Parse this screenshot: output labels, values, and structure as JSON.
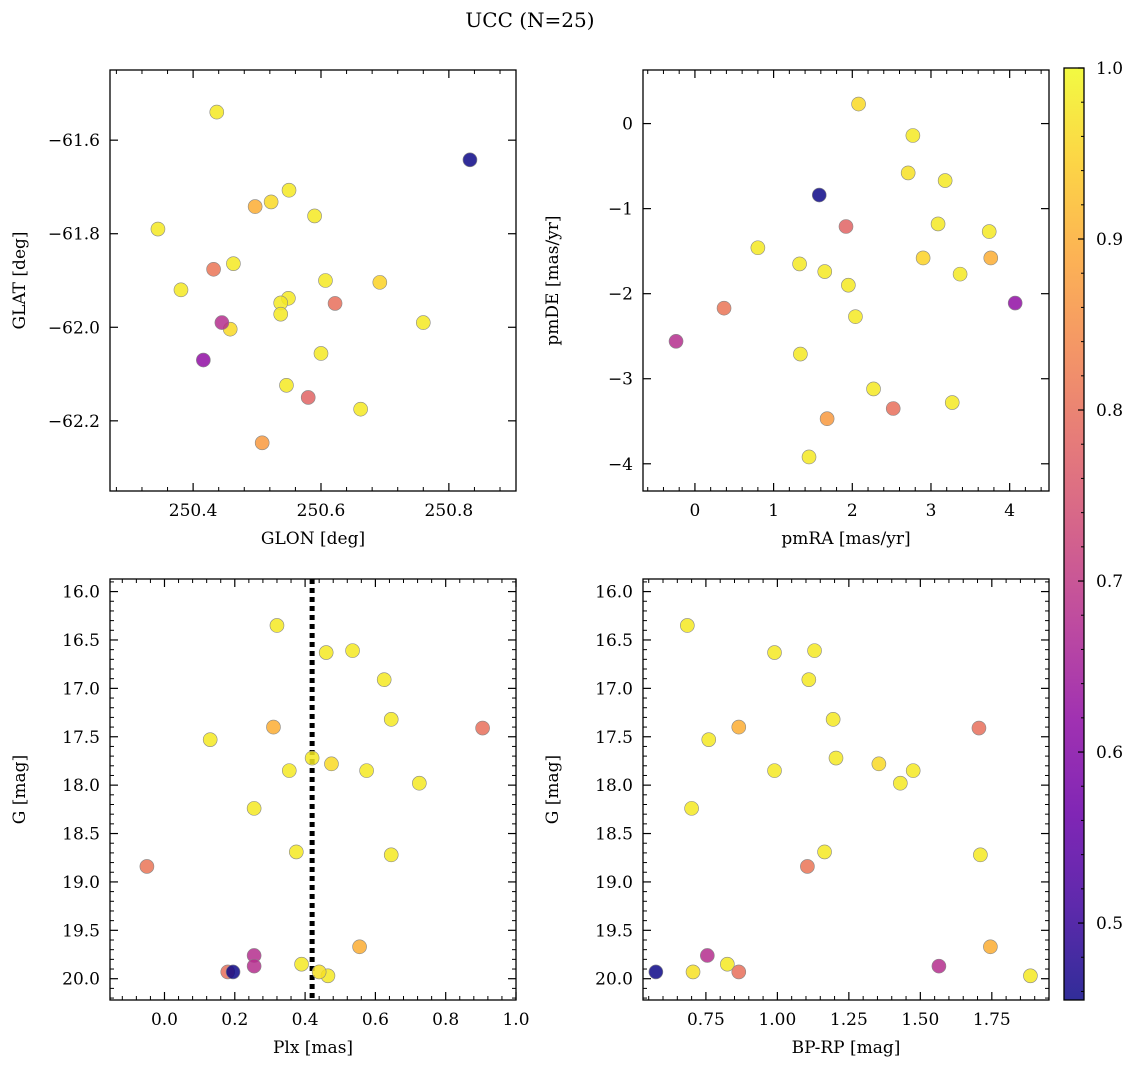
{
  "title": "UCC (N=25)",
  "colorbar": {
    "range": [
      0.455,
      1.0
    ],
    "ticks": [
      0.5,
      0.6,
      0.7,
      0.8,
      0.9,
      1.0
    ],
    "tick_labels": [
      "0.5",
      "0.6",
      "0.7",
      "0.8",
      "0.9",
      "1.0"
    ],
    "colormap": "plasma"
  },
  "chart_data": [
    {
      "type": "scatter",
      "xlabel": "GLON [deg]",
      "ylabel": "GLAT [deg]",
      "xlim": [
        250.27,
        250.905
      ],
      "ylim": [
        -62.35,
        -61.45
      ],
      "x_ticks": [
        250.4,
        250.6,
        250.8
      ],
      "x_tick_labels": [
        "250.4",
        "250.6",
        "250.8"
      ],
      "y_ticks": [
        -61.6,
        -61.8,
        -62.0,
        -62.2
      ],
      "y_tick_labels": [
        "−61.6",
        "−61.8",
        "−62.0",
        "−62.2"
      ],
      "points": [
        {
          "x": 250.437,
          "y": -61.54,
          "c": 0.98
        },
        {
          "x": 250.833,
          "y": -61.642,
          "c": 0.455
        },
        {
          "x": 250.55,
          "y": -61.707,
          "c": 0.98
        },
        {
          "x": 250.522,
          "y": -61.732,
          "c": 0.96
        },
        {
          "x": 250.497,
          "y": -61.742,
          "c": 0.9
        },
        {
          "x": 250.59,
          "y": -61.762,
          "c": 0.98
        },
        {
          "x": 250.345,
          "y": -61.79,
          "c": 0.98
        },
        {
          "x": 250.463,
          "y": -61.864,
          "c": 0.98
        },
        {
          "x": 250.432,
          "y": -61.876,
          "c": 0.81
        },
        {
          "x": 250.607,
          "y": -61.9,
          "c": 0.98
        },
        {
          "x": 250.692,
          "y": -61.904,
          "c": 0.95
        },
        {
          "x": 250.381,
          "y": -61.92,
          "c": 0.98
        },
        {
          "x": 250.549,
          "y": -61.938,
          "c": 0.98
        },
        {
          "x": 250.537,
          "y": -61.948,
          "c": 0.98
        },
        {
          "x": 250.622,
          "y": -61.949,
          "c": 0.8
        },
        {
          "x": 250.537,
          "y": -61.972,
          "c": 0.98
        },
        {
          "x": 250.76,
          "y": -61.99,
          "c": 0.98
        },
        {
          "x": 250.445,
          "y": -61.99,
          "c": 0.68
        },
        {
          "x": 250.458,
          "y": -62.004,
          "c": 0.96
        },
        {
          "x": 250.6,
          "y": -62.056,
          "c": 0.98
        },
        {
          "x": 250.416,
          "y": -62.07,
          "c": 0.62
        },
        {
          "x": 250.546,
          "y": -62.124,
          "c": 0.98
        },
        {
          "x": 250.58,
          "y": -62.15,
          "c": 0.78
        },
        {
          "x": 250.662,
          "y": -62.175,
          "c": 0.98
        },
        {
          "x": 250.508,
          "y": -62.247,
          "c": 0.87
        }
      ]
    },
    {
      "type": "scatter",
      "xlabel": "pmRA [mas/yr]",
      "ylabel": "pmDE [mas/yr]",
      "xlim": [
        -0.66,
        4.5
      ],
      "ylim": [
        -4.32,
        0.63
      ],
      "x_ticks": [
        0,
        1,
        2,
        3,
        4
      ],
      "x_tick_labels": [
        "0",
        "1",
        "2",
        "3",
        "4"
      ],
      "y_ticks": [
        0,
        -1,
        -2,
        -3,
        -4
      ],
      "y_tick_labels": [
        "0",
        "−1",
        "−2",
        "−3",
        "−4"
      ],
      "points": [
        {
          "x": 2.08,
          "y": 0.23,
          "c": 0.96
        },
        {
          "x": 2.77,
          "y": -0.14,
          "c": 0.98
        },
        {
          "x": 2.71,
          "y": -0.58,
          "c": 0.97
        },
        {
          "x": 3.18,
          "y": -0.67,
          "c": 0.98
        },
        {
          "x": 1.58,
          "y": -0.84,
          "c": 0.455
        },
        {
          "x": 3.09,
          "y": -1.18,
          "c": 0.98
        },
        {
          "x": 1.92,
          "y": -1.21,
          "c": 0.78
        },
        {
          "x": 3.74,
          "y": -1.27,
          "c": 0.98
        },
        {
          "x": 0.8,
          "y": -1.46,
          "c": 0.98
        },
        {
          "x": 2.9,
          "y": -1.58,
          "c": 0.95
        },
        {
          "x": 3.76,
          "y": -1.58,
          "c": 0.9
        },
        {
          "x": 1.33,
          "y": -1.65,
          "c": 0.98
        },
        {
          "x": 1.65,
          "y": -1.74,
          "c": 0.98
        },
        {
          "x": 3.37,
          "y": -1.77,
          "c": 0.98
        },
        {
          "x": 1.95,
          "y": -1.9,
          "c": 0.98
        },
        {
          "x": 4.07,
          "y": -2.11,
          "c": 0.62
        },
        {
          "x": 0.37,
          "y": -2.17,
          "c": 0.81
        },
        {
          "x": 2.04,
          "y": -2.27,
          "c": 0.98
        },
        {
          "x": -0.24,
          "y": -2.56,
          "c": 0.68
        },
        {
          "x": 1.34,
          "y": -2.71,
          "c": 0.98
        },
        {
          "x": 2.27,
          "y": -3.12,
          "c": 0.98
        },
        {
          "x": 3.27,
          "y": -3.28,
          "c": 0.98
        },
        {
          "x": 2.52,
          "y": -3.35,
          "c": 0.8
        },
        {
          "x": 1.68,
          "y": -3.47,
          "c": 0.87
        },
        {
          "x": 1.45,
          "y": -3.92,
          "c": 0.98
        }
      ]
    },
    {
      "type": "scatter",
      "xlabel": "Plx [mas]",
      "ylabel": "G [mag]",
      "xlim": [
        -0.155,
        1.0
      ],
      "ylim": [
        20.22,
        15.87
      ],
      "vline": 0.42,
      "x_ticks": [
        0.0,
        0.2,
        0.4,
        0.6,
        0.8,
        1.0
      ],
      "x_tick_labels": [
        "0.0",
        "0.2",
        "0.4",
        "0.6",
        "0.8",
        "1.0"
      ],
      "y_ticks": [
        16.0,
        16.5,
        17.0,
        17.5,
        18.0,
        18.5,
        19.0,
        19.5,
        20.0
      ],
      "y_tick_labels": [
        "16.0",
        "16.5",
        "17.0",
        "17.5",
        "18.0",
        "18.5",
        "19.0",
        "19.5",
        "20.0"
      ],
      "points": [
        {
          "x": 0.32,
          "y": 16.35,
          "c": 0.98
        },
        {
          "x": 0.535,
          "y": 16.61,
          "c": 0.98
        },
        {
          "x": 0.46,
          "y": 16.63,
          "c": 0.98
        },
        {
          "x": 0.625,
          "y": 16.91,
          "c": 0.98
        },
        {
          "x": 0.645,
          "y": 17.32,
          "c": 0.98
        },
        {
          "x": 0.31,
          "y": 17.4,
          "c": 0.9
        },
        {
          "x": 0.905,
          "y": 17.41,
          "c": 0.8
        },
        {
          "x": 0.13,
          "y": 17.53,
          "c": 0.98
        },
        {
          "x": 0.42,
          "y": 17.72,
          "c": 0.98
        },
        {
          "x": 0.475,
          "y": 17.78,
          "c": 0.96
        },
        {
          "x": 0.355,
          "y": 17.85,
          "c": 0.98
        },
        {
          "x": 0.575,
          "y": 17.85,
          "c": 0.98
        },
        {
          "x": 0.725,
          "y": 17.98,
          "c": 0.98
        },
        {
          "x": 0.255,
          "y": 18.24,
          "c": 0.98
        },
        {
          "x": 0.375,
          "y": 18.69,
          "c": 0.98
        },
        {
          "x": 0.645,
          "y": 18.72,
          "c": 0.98
        },
        {
          "x": -0.05,
          "y": 18.84,
          "c": 0.81
        },
        {
          "x": 0.555,
          "y": 19.67,
          "c": 0.9
        },
        {
          "x": 0.255,
          "y": 19.76,
          "c": 0.68
        },
        {
          "x": 0.39,
          "y": 19.85,
          "c": 0.98
        },
        {
          "x": 0.255,
          "y": 19.87,
          "c": 0.68
        },
        {
          "x": 0.44,
          "y": 19.93,
          "c": 0.97
        },
        {
          "x": 0.195,
          "y": 19.93,
          "c": 0.455
        },
        {
          "x": 0.18,
          "y": 19.93,
          "c": 0.8
        },
        {
          "x": 0.465,
          "y": 19.97,
          "c": 0.98
        }
      ]
    },
    {
      "type": "scatter",
      "xlabel": "BP-RP [mag]",
      "ylabel": "G [mag]",
      "xlim": [
        0.53,
        1.95
      ],
      "ylim": [
        20.22,
        15.87
      ],
      "x_ticks": [
        0.75,
        1.0,
        1.25,
        1.5,
        1.75
      ],
      "x_tick_labels": [
        "0.75",
        "1.00",
        "1.25",
        "1.50",
        "1.75"
      ],
      "y_ticks": [
        16.0,
        16.5,
        17.0,
        17.5,
        18.0,
        18.5,
        19.0,
        19.5,
        20.0
      ],
      "y_tick_labels": [
        "16.0",
        "16.5",
        "17.0",
        "17.5",
        "18.0",
        "18.5",
        "19.0",
        "19.5",
        "20.0"
      ],
      "points": [
        {
          "x": 0.685,
          "y": 16.35,
          "c": 0.98
        },
        {
          "x": 1.13,
          "y": 16.61,
          "c": 0.98
        },
        {
          "x": 0.99,
          "y": 16.63,
          "c": 0.98
        },
        {
          "x": 1.11,
          "y": 16.91,
          "c": 0.98
        },
        {
          "x": 1.195,
          "y": 17.32,
          "c": 0.98
        },
        {
          "x": 0.865,
          "y": 17.4,
          "c": 0.9
        },
        {
          "x": 1.705,
          "y": 17.41,
          "c": 0.8
        },
        {
          "x": 0.76,
          "y": 17.53,
          "c": 0.98
        },
        {
          "x": 1.205,
          "y": 17.72,
          "c": 0.98
        },
        {
          "x": 1.355,
          "y": 17.78,
          "c": 0.96
        },
        {
          "x": 0.99,
          "y": 17.85,
          "c": 0.98
        },
        {
          "x": 1.475,
          "y": 17.85,
          "c": 0.98
        },
        {
          "x": 1.43,
          "y": 17.98,
          "c": 0.98
        },
        {
          "x": 0.7,
          "y": 18.24,
          "c": 0.98
        },
        {
          "x": 1.165,
          "y": 18.69,
          "c": 0.98
        },
        {
          "x": 1.71,
          "y": 18.72,
          "c": 0.98
        },
        {
          "x": 1.105,
          "y": 18.84,
          "c": 0.81
        },
        {
          "x": 1.745,
          "y": 19.67,
          "c": 0.9
        },
        {
          "x": 0.755,
          "y": 19.76,
          "c": 0.68
        },
        {
          "x": 0.825,
          "y": 19.85,
          "c": 0.98
        },
        {
          "x": 1.565,
          "y": 19.87,
          "c": 0.68
        },
        {
          "x": 0.705,
          "y": 19.93,
          "c": 0.97
        },
        {
          "x": 0.575,
          "y": 19.93,
          "c": 0.455
        },
        {
          "x": 0.865,
          "y": 19.93,
          "c": 0.8
        },
        {
          "x": 1.885,
          "y": 19.97,
          "c": 0.98
        }
      ]
    }
  ]
}
